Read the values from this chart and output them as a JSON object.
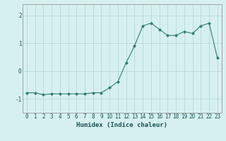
{
  "x": [
    0,
    1,
    2,
    3,
    4,
    5,
    6,
    7,
    8,
    9,
    10,
    11,
    12,
    13,
    14,
    15,
    16,
    17,
    18,
    19,
    20,
    21,
    22,
    23
  ],
  "y": [
    -0.78,
    -0.78,
    -0.85,
    -0.82,
    -0.82,
    -0.82,
    -0.82,
    -0.82,
    -0.78,
    -0.78,
    -0.6,
    -0.38,
    0.3,
    0.9,
    1.62,
    1.72,
    1.5,
    1.28,
    1.28,
    1.42,
    1.35,
    1.62,
    1.72,
    0.48
  ],
  "line_color": "#2e7d6e",
  "marker": "D",
  "marker_size": 2,
  "background_color": "#d6f0f0",
  "grid_color": "#b8d8d8",
  "xlabel": "Humidex (Indice chaleur)",
  "xlim": [
    -0.5,
    23.5
  ],
  "ylim": [
    -1.5,
    2.4
  ],
  "yticks": [
    -1,
    0,
    1,
    2
  ],
  "xticks": [
    0,
    1,
    2,
    3,
    4,
    5,
    6,
    7,
    8,
    9,
    10,
    11,
    12,
    13,
    14,
    15,
    16,
    17,
    18,
    19,
    20,
    21,
    22,
    23
  ],
  "tick_label_fontsize": 5.5,
  "xlabel_fontsize": 6.5
}
